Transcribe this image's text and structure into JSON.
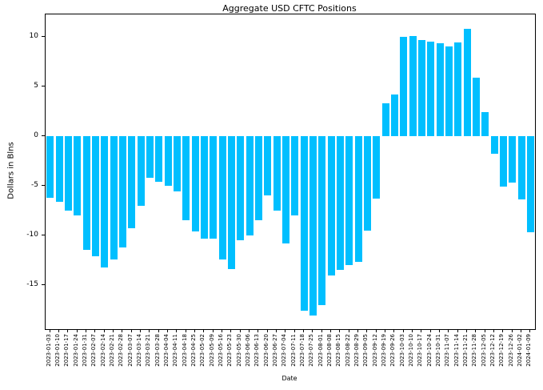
{
  "title": "Aggregate USD CFTC Positions",
  "chart_data": {
    "type": "bar",
    "title": "Aggregate USD CFTC Positions",
    "xlabel": "Date",
    "ylabel": "Dollars in Blns",
    "bar_color": "#00bfff",
    "legend": "none",
    "grid": false,
    "ylim": [
      -19.44,
      12.24
    ],
    "yticks": [
      10,
      5,
      0,
      -5,
      -10,
      -15
    ],
    "categories": [
      "2023-01-03",
      "2023-01-10",
      "2023-01-17",
      "2023-01-24",
      "2023-01-31",
      "2023-02-07",
      "2023-02-14",
      "2023-02-21",
      "2023-02-28",
      "2023-03-07",
      "2023-03-14",
      "2023-03-21",
      "2023-03-28",
      "2023-04-04",
      "2023-04-11",
      "2023-04-18",
      "2023-04-25",
      "2023-05-02",
      "2023-05-09",
      "2023-05-16",
      "2023-05-23",
      "2023-05-30",
      "2023-06-06",
      "2023-06-13",
      "2023-06-20",
      "2023-06-27",
      "2023-07-04",
      "2023-07-11",
      "2023-07-18",
      "2023-07-25",
      "2023-08-01",
      "2023-08-08",
      "2023-08-15",
      "2023-08-22",
      "2023-08-29",
      "2023-09-05",
      "2023-09-12",
      "2023-09-19",
      "2023-09-26",
      "2023-10-03",
      "2023-10-10",
      "2023-10-17",
      "2023-10-24",
      "2023-10-31",
      "2023-11-07",
      "2023-11-14",
      "2023-11-21",
      "2023-11-28",
      "2023-12-05",
      "2023-12-12",
      "2023-12-19",
      "2023-12-26",
      "2024-01-02",
      "2024-01-09"
    ],
    "values": [
      -6.2,
      -6.6,
      -7.5,
      -8.0,
      -11.5,
      -12.1,
      -13.2,
      -12.4,
      -11.2,
      -9.3,
      -7.0,
      -4.2,
      -4.6,
      -5.0,
      -5.6,
      -8.5,
      -9.6,
      -10.3,
      -10.3,
      -12.4,
      -13.4,
      -10.5,
      -10.0,
      -8.5,
      -6.0,
      -7.5,
      -10.8,
      -8.0,
      -17.6,
      -18.1,
      -17.0,
      -14.0,
      -13.5,
      -13.0,
      -12.7,
      -9.5,
      -6.3,
      3.3,
      4.2,
      10.0,
      10.1,
      9.7,
      9.5,
      9.3,
      9.0,
      9.4,
      10.8,
      5.9,
      2.4,
      -1.8,
      -5.1,
      -4.7,
      -6.4,
      -9.7
    ]
  }
}
